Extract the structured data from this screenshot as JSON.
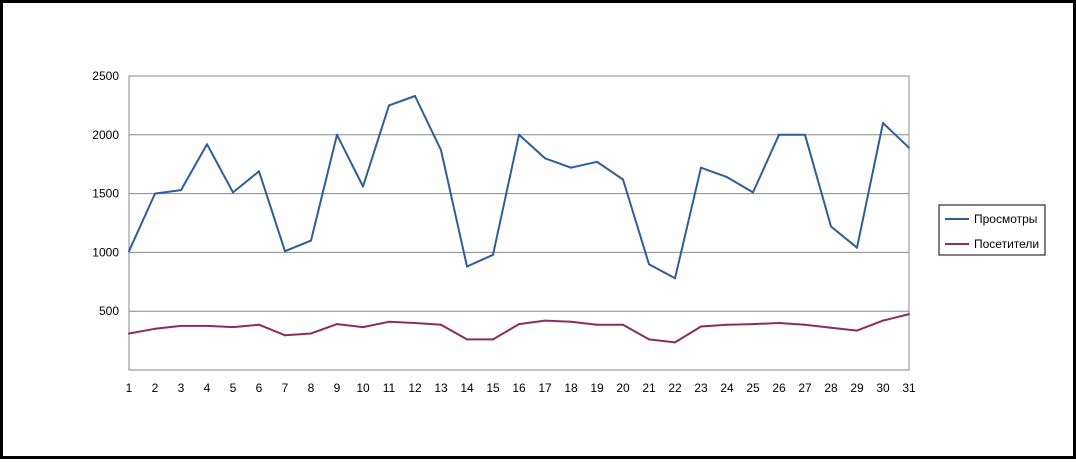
{
  "chart_data": {
    "type": "line",
    "title": "",
    "xlabel": "",
    "ylabel": "",
    "categories": [
      "1",
      "2",
      "3",
      "4",
      "5",
      "6",
      "7",
      "8",
      "9",
      "10",
      "11",
      "12",
      "13",
      "14",
      "15",
      "16",
      "17",
      "18",
      "19",
      "20",
      "21",
      "22",
      "23",
      "24",
      "25",
      "26",
      "27",
      "28",
      "29",
      "30",
      "31"
    ],
    "ylim": [
      0,
      2500
    ],
    "yticks": [
      500,
      1000,
      1500,
      2000,
      2500
    ],
    "grid": true,
    "legend_position": "right",
    "series": [
      {
        "name": "Просмотры",
        "color": "#2e5e98",
        "values": [
          1010,
          1500,
          1530,
          1920,
          1510,
          1690,
          1010,
          1100,
          2000,
          1560,
          2250,
          2330,
          1870,
          880,
          980,
          2000,
          1800,
          1720,
          1770,
          1620,
          900,
          780,
          1720,
          1640,
          1510,
          2000,
          2000,
          1220,
          1040,
          2100,
          1890
        ]
      },
      {
        "name": "Посетители",
        "color": "#8b2d5e",
        "values": [
          310,
          350,
          375,
          375,
          365,
          385,
          295,
          310,
          390,
          365,
          410,
          400,
          385,
          260,
          260,
          390,
          420,
          410,
          385,
          385,
          260,
          235,
          370,
          385,
          390,
          400,
          385,
          360,
          335,
          420,
          475
        ]
      }
    ]
  }
}
